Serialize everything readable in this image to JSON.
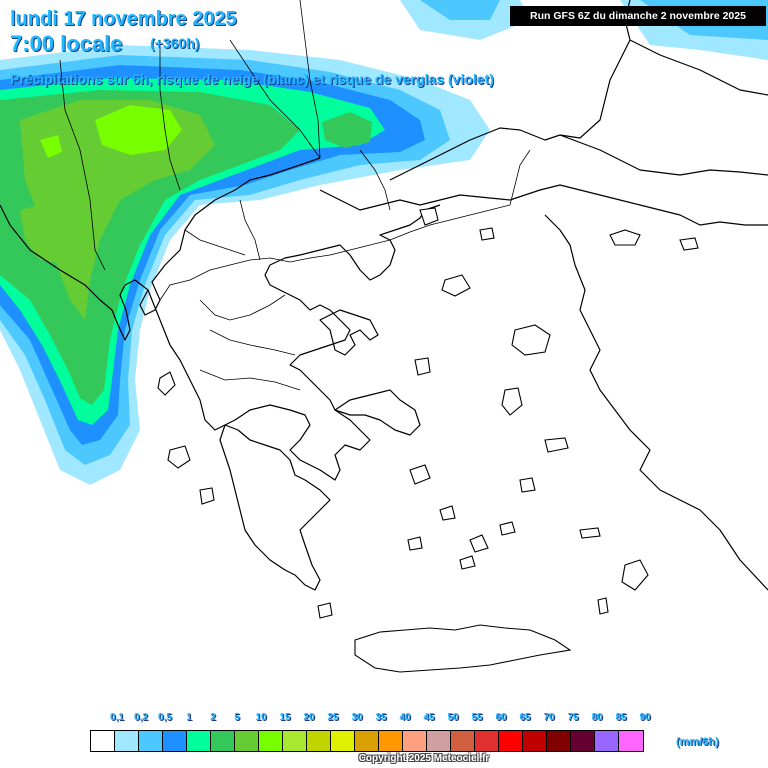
{
  "header": {
    "date_line": "lundi 17 novembre 2025",
    "time_line": "7:00 locale",
    "lead_time": "(+360h)",
    "subtitle": "Précipitations sur 6h, risque de neige (blanc) et risque de verglas (violet)",
    "run_info": "Run GFS 6Z du dimanche 2 novembre 2025"
  },
  "legend": {
    "labels": [
      "0,1",
      "0,2",
      "0,5",
      "1",
      "2",
      "5",
      "10",
      "15",
      "20",
      "25",
      "30",
      "35",
      "40",
      "45",
      "50",
      "55",
      "60",
      "65",
      "70",
      "75",
      "80",
      "85",
      "90"
    ],
    "colors": [
      "#ffffff",
      "#a0e8ff",
      "#4cc8ff",
      "#1e90ff",
      "#00ff9c",
      "#34c85a",
      "#66cc33",
      "#77ff00",
      "#a8e830",
      "#c0d400",
      "#e0f000",
      "#d8a000",
      "#ff9800",
      "#ffa080",
      "#d0a0a0",
      "#d06040",
      "#e03030",
      "#ff0000",
      "#c00000",
      "#800000",
      "#660033",
      "#9966ff",
      "#ff66ff"
    ],
    "unit": "(mm/6h)"
  },
  "footer": {
    "copyright": "Copyright 2025 Meteociel.fr"
  },
  "map": {
    "region": "Greece and Balkans",
    "precip_colors": {
      "light_cyan": "#a0e8ff",
      "sky_blue": "#4cc8ff",
      "blue": "#1e90ff",
      "aqua_green": "#00ff9c",
      "green": "#34c85a",
      "yellow_green": "#66cc33",
      "lime": "#77ff00"
    }
  }
}
